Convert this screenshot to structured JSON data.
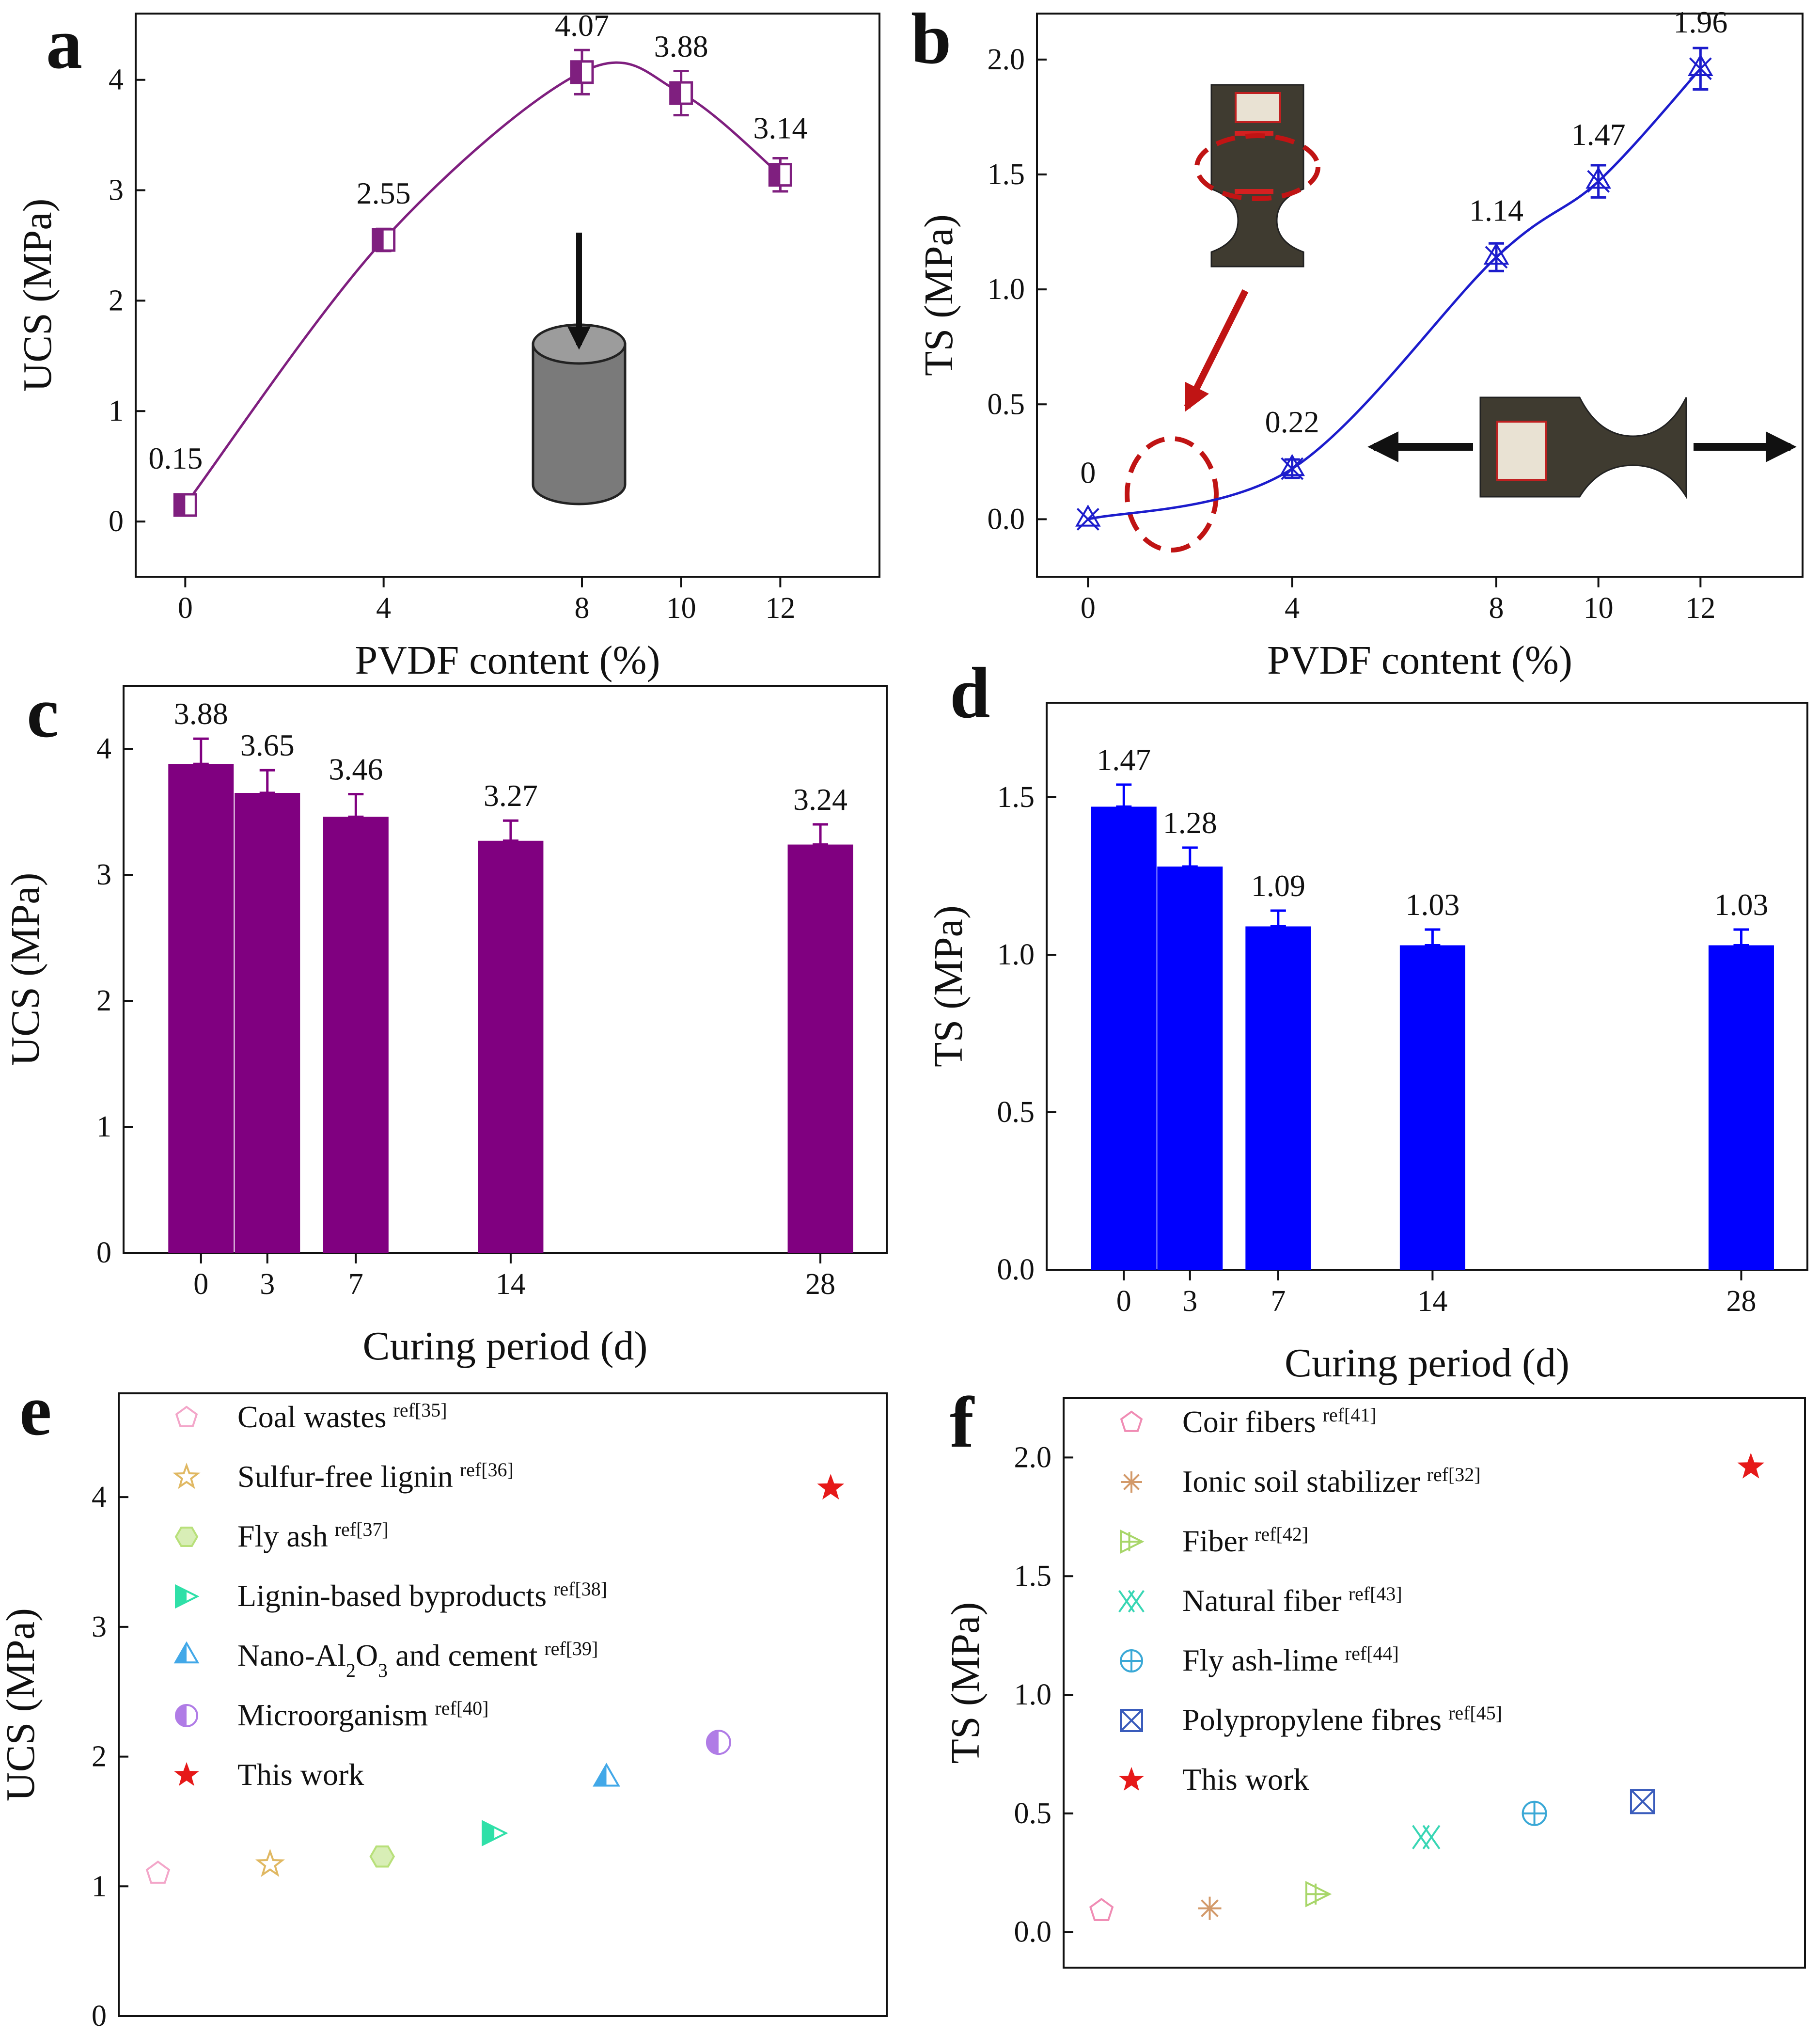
{
  "chart_data": [
    {
      "id": "a",
      "type": "line",
      "panel_label": "a",
      "xlabel": "PVDF content (%)",
      "ylabel": "UCS (MPa)",
      "x": [
        0,
        4,
        8,
        10,
        12
      ],
      "y": [
        0.15,
        2.55,
        4.07,
        3.88,
        3.14
      ],
      "data_labels": [
        "0.15",
        "2.55",
        "4.07",
        "3.88",
        "3.14"
      ],
      "error": [
        0.08,
        0.1,
        0.2,
        0.2,
        0.15
      ],
      "xlim": [
        -1,
        14
      ],
      "ylim": [
        -0.5,
        4.6
      ],
      "xticks": [
        0,
        4,
        8,
        10,
        12
      ],
      "yticks": [
        0,
        1,
        2,
        3,
        4
      ],
      "color": "#7f1f7f",
      "marker": "half-square"
    },
    {
      "id": "b",
      "type": "line",
      "panel_label": "b",
      "xlabel": "PVDF content (%)",
      "ylabel": "TS (MPa)",
      "x": [
        0,
        4,
        8,
        10,
        12
      ],
      "y": [
        0,
        0.22,
        1.14,
        1.47,
        1.96
      ],
      "data_labels": [
        "0",
        "0.22",
        "1.14",
        "1.47",
        "1.96"
      ],
      "error": [
        0.0,
        0.04,
        0.06,
        0.07,
        0.09
      ],
      "xlim": [
        -1,
        14
      ],
      "ylim": [
        -0.25,
        2.2
      ],
      "xticks": [
        0,
        4,
        8,
        10,
        12
      ],
      "yticks": [
        "0.0",
        "0.5",
        "1.0",
        "1.5",
        "2.0"
      ],
      "color": "#1c1ccc",
      "marker": "triangle-cross"
    },
    {
      "id": "c",
      "type": "bar",
      "panel_label": "c",
      "xlabel": "Curing period (d)",
      "ylabel": "UCS (MPa)",
      "categories": [
        "0",
        "3",
        "7",
        "14",
        "28"
      ],
      "x": [
        0,
        3,
        7,
        14,
        28
      ],
      "values": [
        3.88,
        3.65,
        3.46,
        3.27,
        3.24
      ],
      "data_labels": [
        "3.88",
        "3.65",
        "3.46",
        "3.27",
        "3.24"
      ],
      "error": [
        0.2,
        0.18,
        0.18,
        0.16,
        0.16
      ],
      "xlim": [
        -3.5,
        31
      ],
      "ylim": [
        0,
        4.5
      ],
      "yticks": [
        0,
        1,
        2,
        3,
        4
      ],
      "color": "#800080"
    },
    {
      "id": "d",
      "type": "bar",
      "panel_label": "d",
      "xlabel": "Curing period (d)",
      "ylabel": "TS (MPa)",
      "categories": [
        "0",
        "3",
        "7",
        "14",
        "28"
      ],
      "x": [
        0,
        3,
        7,
        14,
        28
      ],
      "values": [
        1.47,
        1.28,
        1.09,
        1.03,
        1.03
      ],
      "data_labels": [
        "1.47",
        "1.28",
        "1.09",
        "1.03",
        "1.03"
      ],
      "error": [
        0.07,
        0.06,
        0.05,
        0.05,
        0.05
      ],
      "xlim": [
        -3.5,
        31
      ],
      "ylim": [
        0,
        1.8
      ],
      "yticks": [
        "0.0",
        "0.5",
        "1.0",
        "1.5"
      ],
      "color": "#0000ff"
    },
    {
      "id": "e",
      "type": "scatter",
      "panel_label": "e",
      "ylabel": "UCS (MPa)",
      "ylim": [
        0,
        4.8
      ],
      "yticks": [
        0,
        1,
        2,
        3,
        4
      ],
      "series": [
        {
          "name": "Coal wastes",
          "ref": "ref[35]",
          "x": 0.5,
          "y": 1.1,
          "color": "#f3a6c9",
          "marker": "pentagon"
        },
        {
          "name": "Sulfur-free lignin",
          "ref": "ref[36]",
          "x": 1.5,
          "y": 1.17,
          "color": "#e0b862",
          "marker": "star"
        },
        {
          "name": "Fly ash",
          "ref": "ref[37]",
          "x": 2.5,
          "y": 1.23,
          "color": "#b8e07a",
          "marker": "hexagon"
        },
        {
          "name": "Lignin-based byproducts",
          "ref": "ref[38]",
          "x": 3.5,
          "y": 1.41,
          "color": "#2fe0a8",
          "marker": "triangle-right"
        },
        {
          "name": "Nano-Al2O3 and cement",
          "name_parts": [
            "Nano-Al",
            "2",
            "O",
            "3",
            " and cement"
          ],
          "ref": "ref[39]",
          "x": 4.5,
          "y": 1.83,
          "color": "#42a8e8",
          "marker": "triangle-up"
        },
        {
          "name": "Microorganism",
          "ref": "ref[40]",
          "x": 5.5,
          "y": 2.11,
          "color": "#b07ce6",
          "marker": "circle-half"
        },
        {
          "name": "This work",
          "ref": "",
          "x": 6.5,
          "y": 4.07,
          "color": "#e61919",
          "marker": "star-filled"
        }
      ],
      "xlim": [
        0.15,
        7.0
      ]
    },
    {
      "id": "f",
      "type": "scatter",
      "panel_label": "f",
      "ylabel": "TS (MPa)",
      "ylim": [
        -0.15,
        2.25
      ],
      "yticks": [
        "0.0",
        "0.5",
        "1.0",
        "1.5",
        "2.0"
      ],
      "series": [
        {
          "name": "Coir fibers",
          "ref": "ref[41]",
          "x": 0.5,
          "y": 0.09,
          "color": "#f08cb4",
          "marker": "pentagon"
        },
        {
          "name": "Ionic soil stabilizer",
          "ref": "ref[32]",
          "x": 1.5,
          "y": 0.1,
          "color": "#d39a6a",
          "marker": "asterisk"
        },
        {
          "name": "Fiber",
          "ref": "ref[42]",
          "x": 2.5,
          "y": 0.16,
          "color": "#a8d66a",
          "marker": "triangle-right-cross"
        },
        {
          "name": "Natural fiber",
          "ref": "ref[43]",
          "x": 3.5,
          "y": 0.4,
          "color": "#38d6b4",
          "marker": "double-x"
        },
        {
          "name": "Fly ash-lime",
          "ref": "ref[44]",
          "x": 4.5,
          "y": 0.5,
          "color": "#3aa8d6",
          "marker": "circle-plus"
        },
        {
          "name": "Polypropylene fibres",
          "ref": "ref[45]",
          "x": 5.5,
          "y": 0.55,
          "color": "#3a5cbc",
          "marker": "square-x"
        },
        {
          "name": "This work",
          "ref": "",
          "x": 6.5,
          "y": 1.96,
          "color": "#e61919",
          "marker": "star-filled"
        }
      ],
      "xlim": [
        0.15,
        7.0
      ]
    }
  ]
}
